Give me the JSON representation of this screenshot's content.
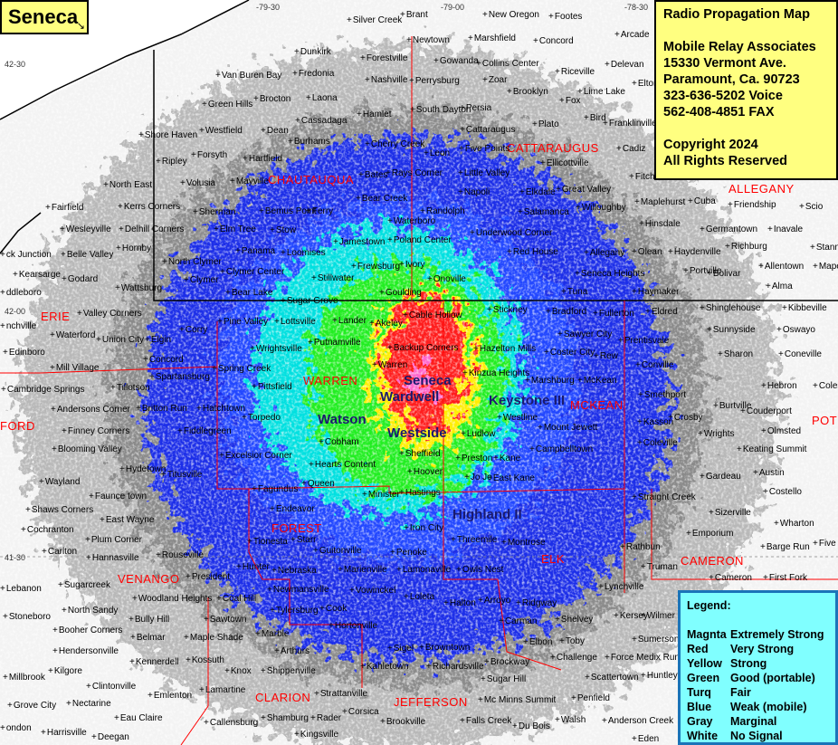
{
  "title": "Seneca",
  "info": {
    "heading": "Radio Propagation Map",
    "company": "Mobile Relay Associates",
    "address1": "15330 Vermont Ave.",
    "address2": "Paramount, Ca. 90723",
    "voice": "323-636-5202 Voice",
    "fax": "562-408-4851 FAX",
    "copyright": "Copyright 2024",
    "rights": "All Rights Reserved"
  },
  "legend": {
    "heading": "Legend:",
    "rows": [
      {
        "color_name": "Magnta",
        "meaning": "Extremely Strong",
        "hex": "#ff00ff"
      },
      {
        "color_name": "Red",
        "meaning": "Very Strong",
        "hex": "#ff0000"
      },
      {
        "color_name": "Yellow",
        "meaning": "Strong",
        "hex": "#ffff00"
      },
      {
        "color_name": "Green",
        "meaning": "Good (portable)",
        "hex": "#00ff00"
      },
      {
        "color_name": "Turq",
        "meaning": "Fair",
        "hex": "#00ffff"
      },
      {
        "color_name": "Blue",
        "meaning": "Weak (mobile)",
        "hex": "#0000ff"
      },
      {
        "color_name": "Gray",
        "meaning": "Marginal",
        "hex": "#a0a0a0"
      },
      {
        "color_name": "White",
        "meaning": "No Signal",
        "hex": "#ffffff"
      }
    ]
  },
  "graticule": [
    "-79-30",
    "-79-00",
    "-78-30",
    "42-30",
    "42-00",
    "41-30"
  ],
  "sites": [
    "Seneca",
    "Wardwell",
    "Keystone III",
    "Watson",
    "Westside",
    "Highland II"
  ],
  "counties": [
    "ERIE",
    "CHAUTAUQUA",
    "CATTARAUGUS",
    "ALLEGANY",
    "WARREN",
    "MCKEAN",
    "POT",
    "FORD",
    "FOREST",
    "ELK",
    "CAMERON",
    "VENANGO",
    "CLARION",
    "JEFFERSON"
  ],
  "towns": [
    "Silver Creek",
    "Brant",
    "New Oregon",
    "Footes",
    "Newtown",
    "Marshfield",
    "Concord",
    "Arcade",
    "Dunkirk",
    "Forestville",
    "Gowanda",
    "Collins Center",
    "Riceville",
    "Delevan",
    "Fredonia",
    "Van Buren Bay",
    "Nashville",
    "Perrysburg",
    "Zoar",
    "Elton",
    "Brooklyn",
    "Lime Lake",
    "Fox",
    "Brocton",
    "Laona",
    "Green Hills",
    "South Dayton",
    "Persia",
    "Hamlet",
    "Cassadaga",
    "Bird",
    "Franklinville",
    "Plato",
    "Cattaraugus",
    "Westfield",
    "Dean",
    "Shore Haven",
    "Burhams",
    "Cherry Creek",
    "Five Points",
    "Cadiz",
    "Leon",
    "Hartfield",
    "Forsyth",
    "Ellicottville",
    "Ripley",
    "Bates",
    "Rays Corner",
    "Little Valley",
    "Fitch",
    "Volusia",
    "Mayville",
    "North East",
    "Bear Creek",
    "Great Valley",
    "Napoli",
    "Elkdale",
    "Maplehurst",
    "Cuba",
    "Kerrs Corners",
    "Fairfield",
    "Friendship",
    "Scio",
    "Willoughby",
    "Sherman",
    "Bemus Point",
    "Ferry",
    "Randolph",
    "Salamanca",
    "Waterboro",
    "Hinsdale",
    "Wesleyville",
    "Delhill Corners",
    "Elm Tree",
    "Stow",
    "Germantown",
    "Inavale",
    "Underwood Corner",
    "Jamestown",
    "Poland Center",
    "Richburg",
    "Stannards",
    "Hornby",
    "Panama",
    "Loomises",
    "Red House",
    "Allegany",
    "Olean",
    "Haydenville",
    "Belle Valley",
    "ck Junction",
    "North Clymer",
    "Frewsburg",
    "Ivory",
    "Allentown",
    "Mapes",
    "Portville",
    "Bolivar",
    "Seneca Heights",
    "Clymer Center",
    "Kearsarge",
    "Godard",
    "Clymer",
    "Stillwater",
    "Onoville",
    "Alma",
    "Wattsburg",
    "Bear Lake",
    "Goulding",
    "Tuna",
    "Haymaker",
    "ddleboro",
    "Sugar Grove",
    "Bradford",
    "Eldred",
    "Shinglehouse",
    "Kibbeville",
    "Valley Corners",
    "Stickney",
    "Fullerton",
    "Cable Hollow",
    "Pine Valley",
    "Lottsville",
    "Lander",
    "Akeley",
    "nchville",
    "Sunnyside",
    "Oswayo",
    "Waterford",
    "Union City",
    "Elgin",
    "Corry",
    "Sawyer City",
    "Prentisvale",
    "Putnamville",
    "Wrightsville",
    "Backup Corners",
    "Hazelton Mills",
    "Coster City",
    "Rew",
    "Edinboro",
    "Concord",
    "Sharon",
    "Coneville",
    "Mill Village",
    "Spring Creek",
    "Warren",
    "Conville",
    "Spartansburg",
    "Kinzua Heights",
    "Marshburg",
    "McKean",
    "Tillotson",
    "Pittsfield",
    "Smethport",
    "Burtville",
    "Hebron",
    "Colesburg",
    "Cambridge Springs",
    "Couderport",
    "Andersons Corner",
    "Britton Run",
    "Hatchtown",
    "Torpedo",
    "Westline",
    "Mount Jewett",
    "Kasson",
    "Crosby",
    "Wrights",
    "Olmsted",
    "Fiddlegreen",
    "Ludlow",
    "Coleville",
    "Keating Summit",
    "Finney Corners",
    "Blooming Valley",
    "Cobham",
    "Campbelltown",
    "Sheffield",
    "Hearts Content",
    "Preston",
    "Kane",
    "Excelsior Corner",
    "Hydetown",
    "Titusville",
    "Hoover",
    "Jo Jo",
    "East Kane",
    "Austin",
    "Gardeau",
    "Wayland",
    "Fagundus",
    "Queen",
    "Minister",
    "Hastings",
    "Faunce town",
    "Shaws Corners",
    "Endeavor",
    "Iron City",
    "Straight Creek",
    "Sizerville",
    "Costello",
    "East Wayne",
    "Tionesta",
    "Starr",
    "Threemile",
    "Montrose",
    "Emporium",
    "Wharton",
    "Cochranton",
    "Plum Corner",
    "Guitonville",
    "Penoke",
    "Carlton",
    "Hannasville",
    "Rouseville",
    "Rathbun",
    "Barge Run",
    "Five",
    "Hunter",
    "Nebraska",
    "Marienville",
    "Lamonaville",
    "Owls Nest",
    "Truman",
    "Cameron",
    "First Fork",
    "President",
    "Lebanon",
    "Sugarcreek",
    "Newmansville",
    "Vowinckel",
    "Loleta",
    "Halton",
    "Arroyo",
    "Ridgway",
    "Lynchville",
    "Woodland Heights",
    "Coal Hill",
    "Stoneboro",
    "North Sandy",
    "Bully Hill",
    "Tylersburg",
    "Cook",
    "Carman",
    "Shelvey",
    "Kersey",
    "Wilmer",
    "Sawtown",
    "Hortonville",
    "Booher Corners",
    "Belmar",
    "Maple Shade",
    "Marble",
    "Elbon",
    "Toby",
    "Sumerson",
    "Hendersonville",
    "Kennerdell",
    "Kossuth",
    "Arthurs",
    "Sigel",
    "Browntown",
    "Brockway",
    "Challenge",
    "Force Medix Run",
    "Kilgore",
    "Knox",
    "Shippenville",
    "Richardsville",
    "Kahletown",
    "Scattertown",
    "Huntley",
    "Millbrook",
    "Clintonville",
    "Lamartine",
    "Strattanville",
    "Mc Minns Summit",
    "Sugar Hill",
    "Penfield",
    "Grove City",
    "Nectarine",
    "Emlenton",
    "Eau Claire",
    "Corsica",
    "Rader",
    "Shamburg",
    "Callensburg",
    "Brookville",
    "Falls Creek",
    "Walsh",
    "Du Bois",
    "Anderson Creek",
    "ondon",
    "Harrisville",
    "Deegan",
    "Kingsville",
    "Eden"
  ]
}
